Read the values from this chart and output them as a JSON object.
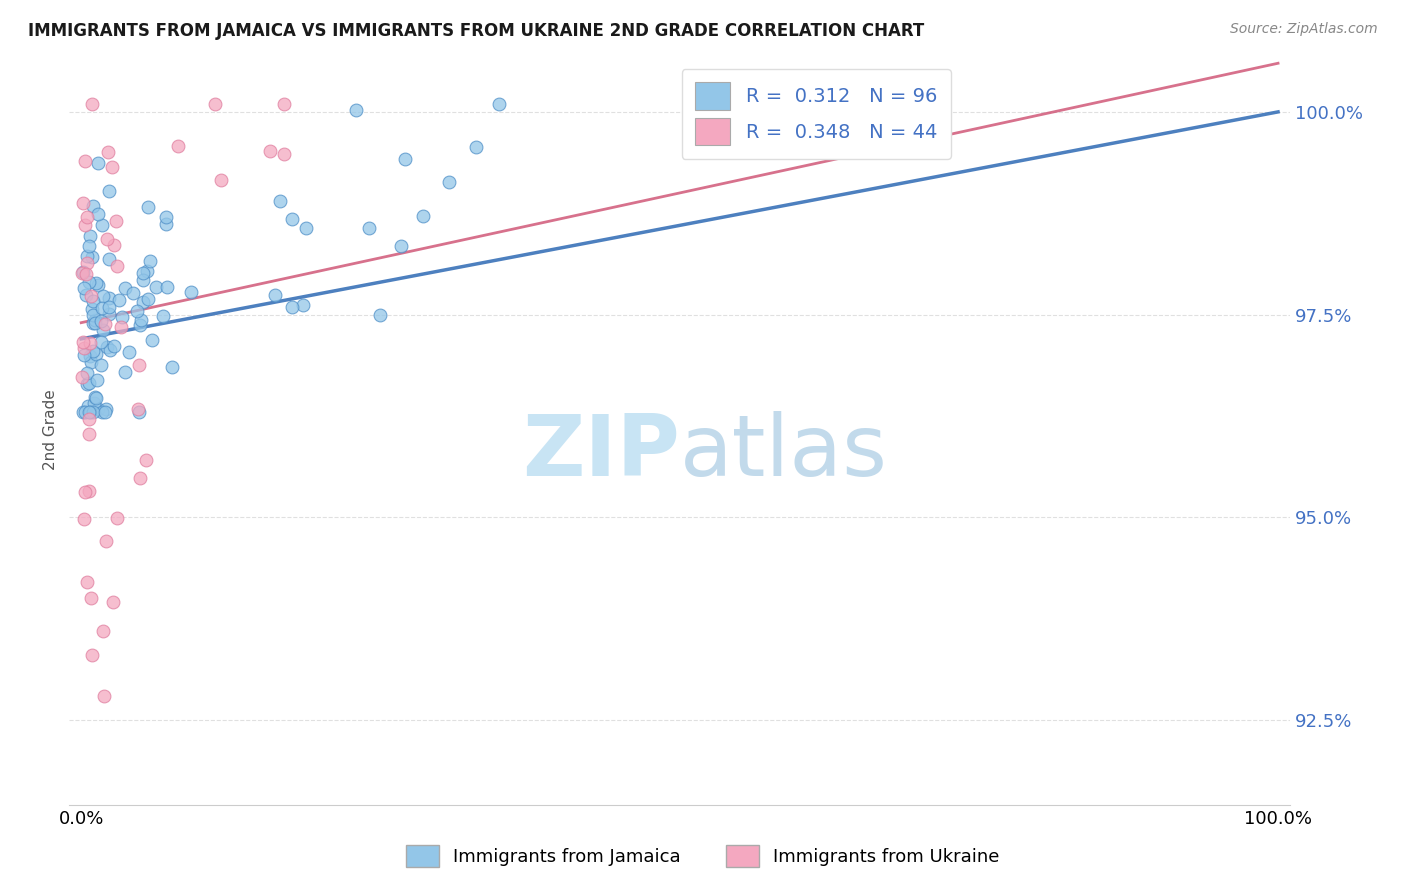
{
  "title": "IMMIGRANTS FROM JAMAICA VS IMMIGRANTS FROM UKRAINE 2ND GRADE CORRELATION CHART",
  "source": "Source: ZipAtlas.com",
  "ylabel": "2nd Grade",
  "yticks": [
    0.925,
    0.95,
    0.975,
    1.0
  ],
  "ytick_labels": [
    "92.5%",
    "95.0%",
    "97.5%",
    "100.0%"
  ],
  "xtick_labels": [
    "0.0%",
    "100.0%"
  ],
  "r_jamaica": 0.312,
  "n_jamaica": 96,
  "r_ukraine": 0.348,
  "n_ukraine": 44,
  "color_jamaica": "#93c6e8",
  "color_ukraine": "#f4a8c0",
  "color_line_jamaica": "#3a72b8",
  "color_line_ukraine": "#d05878",
  "watermark_color": "#c8e4f4",
  "grid_color": "#cccccc",
  "ytick_color": "#4472c4",
  "title_color": "#1a1a1a",
  "source_color": "#888888",
  "ylabel_color": "#555555"
}
